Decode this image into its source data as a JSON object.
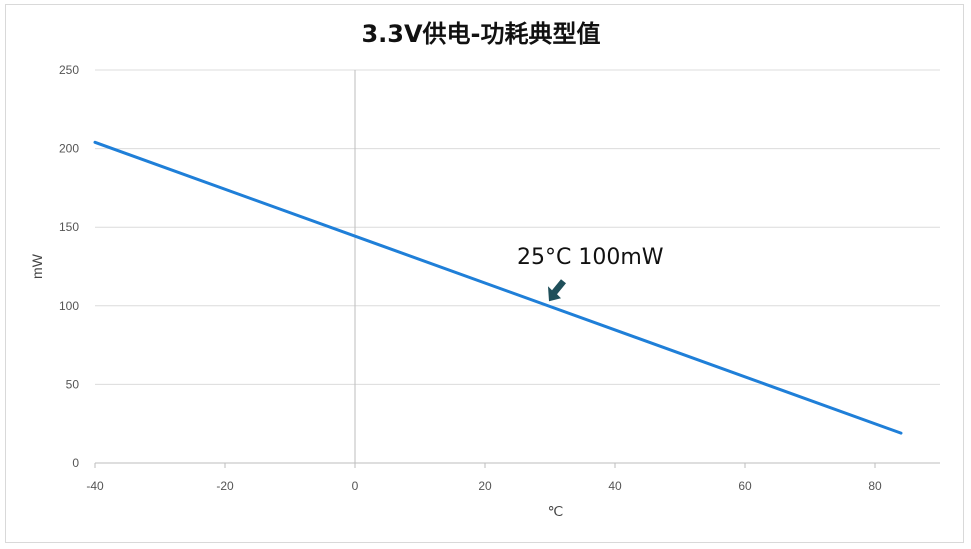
{
  "chart_data": {
    "type": "line",
    "title": "3.3V供电-功耗典型值",
    "xlabel": "℃",
    "ylabel": "mW",
    "xlim": [
      -40,
      90
    ],
    "ylim": [
      0,
      250
    ],
    "x_ticks": [
      "-40",
      "-20",
      "0",
      "20",
      "40",
      "60",
      "80"
    ],
    "y_ticks": [
      "0",
      "50",
      "100",
      "150",
      "200",
      "250"
    ],
    "grid": "horizontal",
    "series": [
      {
        "x": [
          -40,
          84
        ],
        "y": [
          204,
          19
        ],
        "color": "#1f7fd8"
      }
    ],
    "annotation": {
      "text": "25°C  100mW",
      "x": 30,
      "y": 101,
      "arrow_color": "#1f4f5a"
    }
  }
}
